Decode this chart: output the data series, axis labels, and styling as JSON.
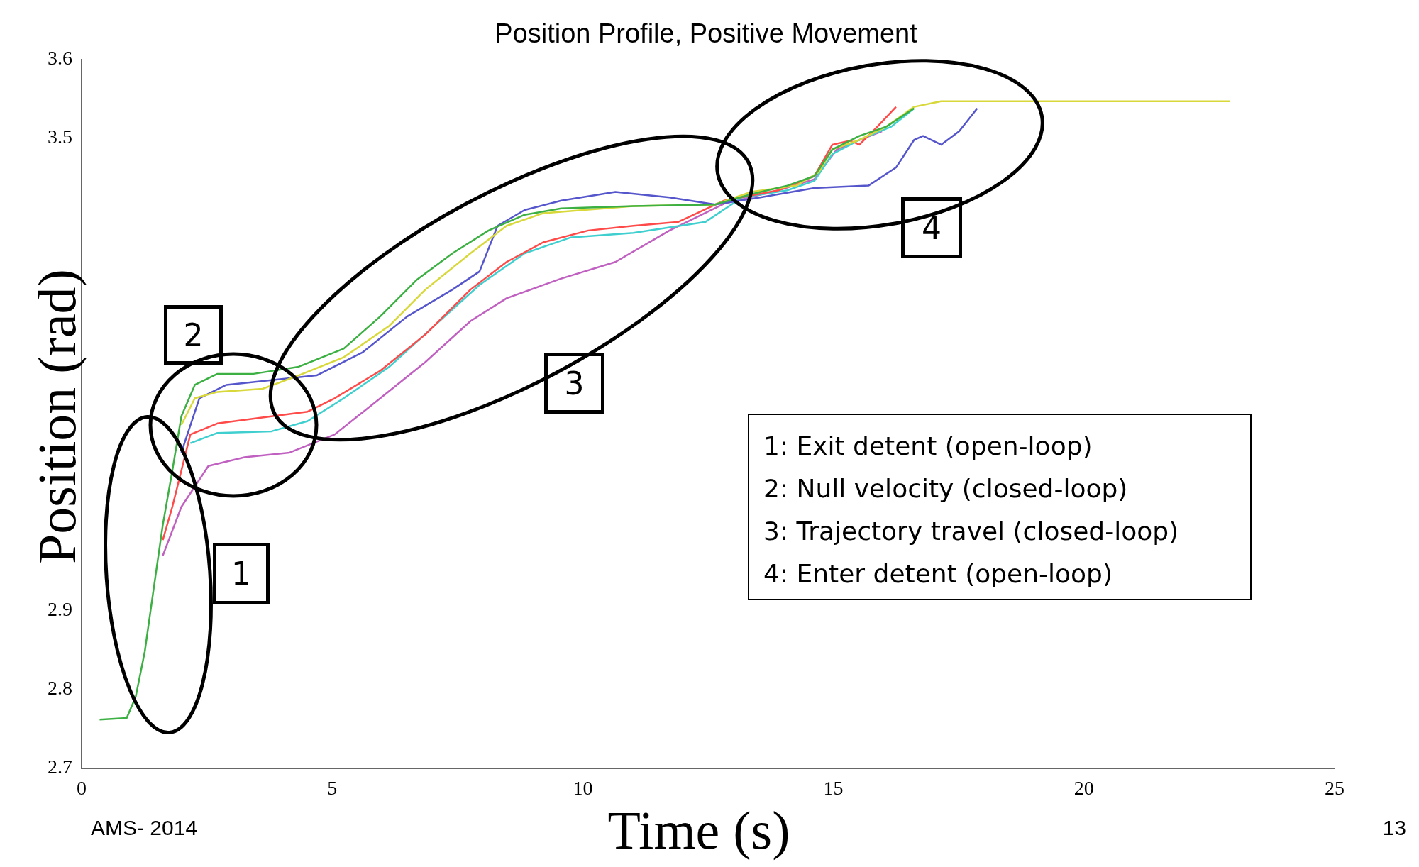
{
  "chart_data": {
    "type": "line",
    "title": "Position Profile, Positive Movement",
    "xlabel": "Time (s)",
    "ylabel": "Position (rad)",
    "xlim": [
      0,
      25
    ],
    "xticks": [
      0,
      5,
      10,
      15,
      20,
      25
    ],
    "ylim": [
      2.7,
      3.6
    ],
    "yticks": [
      2.7,
      2.8,
      2.9,
      3.5,
      3.6
    ],
    "grid": false,
    "legend": false,
    "marker": "none",
    "line_style": "solid",
    "annotations": [
      "1",
      "2",
      "3",
      "4",
      "1: Exit detent (open-loop)",
      "2: Null velocity (closed-loop)",
      "3: Trajectory travel (closed-loop)",
      "4: Enter detent (open-loop)",
      "AMS- 2014",
      "13"
    ],
    "series": [
      {
        "color": "#3cb043",
        "x": [
          0.36,
          0.9,
          1.08,
          1.26,
          1.44,
          1.62,
          1.81,
          1.99,
          2.26,
          2.71,
          3.43,
          4.33,
          5.23,
          5.96,
          6.68,
          7.4,
          8.12,
          8.84,
          9.57,
          11.01,
          12.64,
          13.36,
          14.08,
          14.62,
          14.98,
          15.52,
          16.06,
          16.61
        ],
        "values": [
          2.762,
          2.764,
          2.791,
          2.848,
          2.929,
          3.009,
          3.078,
          3.147,
          3.187,
          3.201,
          3.201,
          3.21,
          3.233,
          3.274,
          3.32,
          3.354,
          3.383,
          3.403,
          3.411,
          3.414,
          3.416,
          3.429,
          3.44,
          3.452,
          3.486,
          3.503,
          3.515,
          3.538
        ]
      },
      {
        "color": "#d8d83a",
        "x": [
          1.99,
          2.26,
          2.71,
          3.61,
          4.33,
          5.23,
          6.14,
          6.86,
          7.76,
          8.48,
          9.21,
          11.01,
          12.64,
          13.36,
          14.26,
          14.71,
          14.98,
          15.52,
          16.06,
          16.61,
          17.15,
          22.92
        ],
        "values": [
          3.136,
          3.17,
          3.178,
          3.182,
          3.199,
          3.222,
          3.262,
          3.308,
          3.354,
          3.389,
          3.405,
          3.414,
          3.416,
          3.432,
          3.44,
          3.457,
          3.486,
          3.498,
          3.515,
          3.54,
          3.547,
          3.547
        ]
      },
      {
        "color": "#5555cc",
        "x": [
          1.99,
          2.35,
          2.89,
          3.79,
          4.69,
          5.6,
          6.5,
          7.4,
          7.94,
          8.3,
          8.84,
          9.57,
          10.65,
          11.73,
          12.64,
          13.54,
          14.62,
          15.7,
          16.25,
          16.61,
          16.79,
          17.15,
          17.51,
          17.87
        ],
        "values": [
          3.101,
          3.17,
          3.187,
          3.193,
          3.199,
          3.228,
          3.274,
          3.308,
          3.331,
          3.389,
          3.409,
          3.421,
          3.432,
          3.425,
          3.416,
          3.425,
          3.437,
          3.44,
          3.463,
          3.498,
          3.503,
          3.492,
          3.509,
          3.538
        ]
      },
      {
        "color": "#ff4a4a",
        "x": [
          1.62,
          1.81,
          2.17,
          2.71,
          3.79,
          4.51,
          5.05,
          5.96,
          6.86,
          7.76,
          8.48,
          9.21,
          10.11,
          11.01,
          11.91,
          12.82,
          13.9,
          14.62,
          14.98,
          15.34,
          15.52,
          15.88,
          16.25
        ],
        "values": [
          2.99,
          3.032,
          3.124,
          3.138,
          3.147,
          3.153,
          3.17,
          3.205,
          3.251,
          3.308,
          3.343,
          3.368,
          3.383,
          3.389,
          3.394,
          3.421,
          3.434,
          3.452,
          3.492,
          3.497,
          3.492,
          3.515,
          3.54
        ]
      },
      {
        "color": "#3fcfcf",
        "x": [
          2.17,
          2.71,
          3.79,
          4.51,
          5.23,
          6.14,
          7.04,
          7.94,
          8.84,
          9.75,
          11.01,
          12.45,
          13.18,
          14.08,
          14.62,
          14.98,
          15.52,
          16.16,
          16.61
        ],
        "values": [
          3.113,
          3.126,
          3.128,
          3.141,
          3.17,
          3.21,
          3.262,
          3.314,
          3.354,
          3.374,
          3.38,
          3.394,
          3.425,
          3.434,
          3.446,
          3.48,
          3.498,
          3.515,
          3.538
        ]
      },
      {
        "color": "#c060c0",
        "x": [
          1.62,
          1.99,
          2.53,
          3.25,
          4.15,
          5.05,
          5.96,
          6.86,
          7.76,
          8.48,
          9.57,
          10.65,
          11.73,
          12.82,
          13.9,
          14.62,
          15.07,
          15.52,
          15.97
        ],
        "values": [
          2.97,
          3.032,
          3.084,
          3.095,
          3.101,
          3.124,
          3.17,
          3.216,
          3.268,
          3.297,
          3.322,
          3.343,
          3.383,
          3.417,
          3.434,
          3.448,
          3.486,
          3.498,
          3.509
        ]
      }
    ]
  }
}
